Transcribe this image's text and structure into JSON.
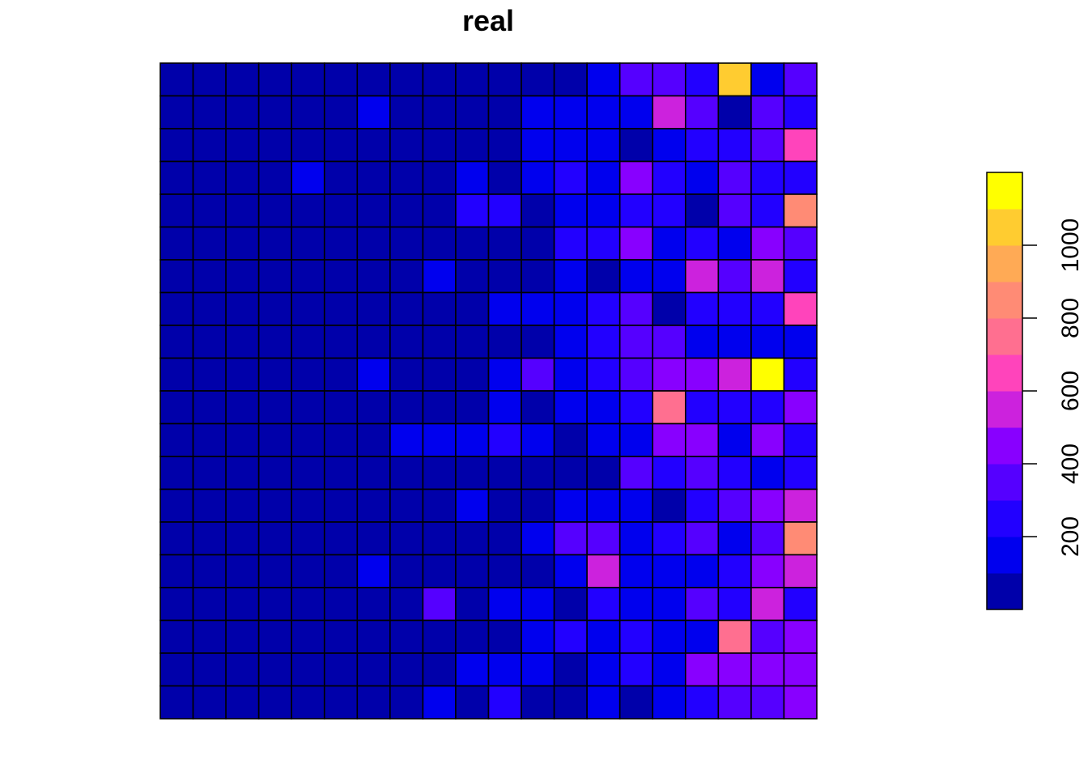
{
  "chart_data": {
    "type": "heatmap",
    "title": "real",
    "xlabel": "",
    "ylabel": "",
    "rows": 20,
    "cols": 20,
    "values": [
      [
        25,
        25,
        25,
        25,
        25,
        25,
        25,
        25,
        25,
        25,
        25,
        25,
        25,
        125,
        375,
        375,
        225,
        1025,
        125,
        375
      ],
      [
        25,
        25,
        25,
        25,
        25,
        25,
        125,
        25,
        25,
        25,
        25,
        125,
        125,
        125,
        125,
        525,
        375,
        25,
        325,
        225
      ],
      [
        25,
        25,
        25,
        25,
        25,
        25,
        25,
        25,
        25,
        25,
        25,
        125,
        125,
        125,
        25,
        125,
        225,
        225,
        325,
        675
      ],
      [
        25,
        25,
        25,
        25,
        125,
        25,
        25,
        25,
        25,
        125,
        25,
        125,
        225,
        125,
        425,
        225,
        125,
        375,
        225,
        225
      ],
      [
        25,
        25,
        25,
        25,
        25,
        25,
        25,
        25,
        25,
        225,
        275,
        25,
        125,
        125,
        225,
        225,
        25,
        375,
        225,
        875
      ],
      [
        25,
        25,
        25,
        25,
        25,
        25,
        25,
        25,
        25,
        25,
        25,
        25,
        225,
        225,
        425,
        125,
        225,
        125,
        425,
        375
      ],
      [
        25,
        25,
        25,
        25,
        25,
        25,
        25,
        25,
        125,
        25,
        25,
        25,
        125,
        25,
        125,
        125,
        525,
        375,
        525,
        225
      ],
      [
        25,
        25,
        25,
        25,
        25,
        25,
        25,
        25,
        25,
        25,
        125,
        125,
        125,
        225,
        375,
        25,
        225,
        225,
        225,
        675
      ],
      [
        25,
        25,
        25,
        25,
        25,
        25,
        25,
        25,
        25,
        25,
        25,
        25,
        125,
        225,
        325,
        375,
        125,
        125,
        125,
        125
      ],
      [
        25,
        25,
        25,
        25,
        25,
        25,
        125,
        25,
        25,
        25,
        125,
        375,
        125,
        225,
        375,
        425,
        425,
        525,
        1125,
        225
      ],
      [
        25,
        25,
        25,
        25,
        25,
        25,
        25,
        25,
        25,
        25,
        125,
        25,
        125,
        125,
        225,
        725,
        225,
        225,
        225,
        425
      ],
      [
        25,
        25,
        25,
        25,
        25,
        25,
        25,
        125,
        125,
        125,
        225,
        125,
        25,
        125,
        125,
        425,
        425,
        125,
        425,
        225
      ],
      [
        25,
        25,
        25,
        25,
        25,
        25,
        25,
        25,
        25,
        25,
        25,
        25,
        25,
        25,
        375,
        225,
        325,
        225,
        125,
        225
      ],
      [
        25,
        25,
        25,
        25,
        25,
        25,
        25,
        25,
        25,
        125,
        25,
        25,
        125,
        125,
        125,
        25,
        225,
        325,
        425,
        525
      ],
      [
        25,
        25,
        25,
        25,
        25,
        25,
        25,
        25,
        25,
        25,
        25,
        125,
        375,
        375,
        125,
        225,
        325,
        125,
        325,
        875
      ],
      [
        25,
        25,
        25,
        25,
        25,
        25,
        125,
        25,
        25,
        25,
        25,
        25,
        125,
        575,
        125,
        125,
        125,
        225,
        425,
        525
      ],
      [
        25,
        25,
        25,
        25,
        25,
        25,
        25,
        25,
        375,
        25,
        125,
        125,
        25,
        225,
        125,
        125,
        325,
        225,
        525,
        225
      ],
      [
        25,
        25,
        25,
        25,
        25,
        25,
        25,
        25,
        25,
        25,
        25,
        125,
        225,
        125,
        225,
        125,
        125,
        775,
        325,
        425
      ],
      [
        25,
        25,
        25,
        25,
        25,
        25,
        25,
        25,
        25,
        125,
        125,
        125,
        25,
        125,
        225,
        125,
        425,
        425,
        425,
        425
      ],
      [
        25,
        25,
        25,
        25,
        25,
        25,
        25,
        25,
        125,
        25,
        275,
        25,
        25,
        125,
        25,
        125,
        225,
        325,
        325,
        425
      ]
    ],
    "legend": {
      "placement": "right",
      "breaks": [
        0,
        100,
        200,
        300,
        400,
        500,
        600,
        700,
        800,
        900,
        1000,
        1100,
        1200
      ],
      "colors": [
        "#0000AA",
        "#0000EE",
        "#2200FF",
        "#5500FF",
        "#8800FF",
        "#CC22DD",
        "#FF44BB",
        "#FF6F90",
        "#FF8B75",
        "#FFAA55",
        "#FFCC30",
        "#FFFF00"
      ],
      "ticks": [
        200,
        400,
        600,
        800,
        1000
      ],
      "tick_labels": [
        "200",
        "400",
        "600",
        "800",
        "1000"
      ]
    },
    "grid": true
  }
}
